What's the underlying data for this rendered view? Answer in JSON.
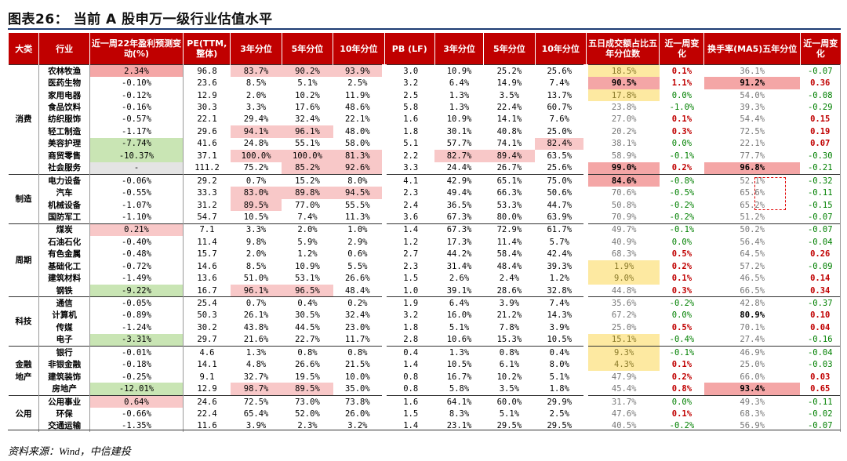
{
  "title": "图表26：  当前 A 股申万一级行业估值水平",
  "source": "资料来源：Wind，中信建投",
  "headers": [
    "大类",
    "行业",
    "近一周22年盈利预测变动(%)",
    "PE(TTM,整体)",
    "3年分位",
    "5年分位",
    "10年分位",
    "PB (LF)",
    "3年分位",
    "5年分位",
    "10年分位",
    "五日成交额占比五年分位数",
    "近一周变化",
    "换手率(MA5)五年分位",
    "近一周变化"
  ],
  "groups": [
    {
      "name": "消费",
      "rows": [
        {
          "industry": "农林牧渔",
          "eps": "2.34%",
          "pe": "96.8",
          "pe3": "83.7%",
          "pe5": "90.2%",
          "pe10": "93.9%",
          "pb": "3.0",
          "pb3": "10.9%",
          "pb5": "25.2%",
          "pb10": "25.6%",
          "vol": "18.5%",
          "volchg": "0.1%",
          "turn": "36.1%",
          "turnchg": "-0.07"
        },
        {
          "industry": "医药生物",
          "eps": "-0.10%",
          "pe": "23.6",
          "pe3": "8.5%",
          "pe5": "5.1%",
          "pe10": "2.5%",
          "pb": "3.2",
          "pb3": "6.4%",
          "pb5": "14.9%",
          "pb10": "7.4%",
          "vol": "90.5%",
          "volchg": "1.1%",
          "turn": "91.2%",
          "turnchg": "0.36"
        },
        {
          "industry": "家用电器",
          "eps": "-0.12%",
          "pe": "12.9",
          "pe3": "2.0%",
          "pe5": "10.2%",
          "pe10": "11.9%",
          "pb": "2.5",
          "pb3": "1.3%",
          "pb5": "3.5%",
          "pb10": "13.7%",
          "vol": "17.8%",
          "volchg": "0.0%",
          "turn": "54.0%",
          "turnchg": "-0.08"
        },
        {
          "industry": "食品饮料",
          "eps": "-0.16%",
          "pe": "30.3",
          "pe3": "3.3%",
          "pe5": "17.6%",
          "pe10": "48.6%",
          "pb": "5.8",
          "pb3": "1.3%",
          "pb5": "22.4%",
          "pb10": "60.7%",
          "vol": "23.8%",
          "volchg": "-1.0%",
          "turn": "39.3%",
          "turnchg": "-0.29"
        },
        {
          "industry": "纺织服饰",
          "eps": "-0.57%",
          "pe": "22.1",
          "pe3": "29.4%",
          "pe5": "32.4%",
          "pe10": "22.1%",
          "pb": "1.6",
          "pb3": "10.9%",
          "pb5": "14.1%",
          "pb10": "7.6%",
          "vol": "27.0%",
          "volchg": "0.1%",
          "turn": "54.4%",
          "turnchg": "0.15"
        },
        {
          "industry": "轻工制造",
          "eps": "-1.17%",
          "pe": "29.6",
          "pe3": "94.1%",
          "pe5": "96.1%",
          "pe10": "48.0%",
          "pb": "1.8",
          "pb3": "30.1%",
          "pb5": "40.8%",
          "pb10": "25.0%",
          "vol": "20.2%",
          "volchg": "0.3%",
          "turn": "72.5%",
          "turnchg": "0.19"
        },
        {
          "industry": "美容护理",
          "eps": "-7.74%",
          "pe": "41.6",
          "pe3": "24.8%",
          "pe5": "55.1%",
          "pe10": "58.0%",
          "pb": "5.1",
          "pb3": "57.7%",
          "pb5": "74.1%",
          "pb10": "82.4%",
          "vol": "38.1%",
          "volchg": "0.0%",
          "turn": "22.1%",
          "turnchg": "0.07"
        },
        {
          "industry": "商贸零售",
          "eps": "-10.37%",
          "pe": "37.1",
          "pe3": "100.0%",
          "pe5": "100.0%",
          "pe10": "81.3%",
          "pb": "2.2",
          "pb3": "82.7%",
          "pb5": "89.4%",
          "pb10": "63.5%",
          "vol": "58.9%",
          "volchg": "-0.1%",
          "turn": "77.7%",
          "turnchg": "-0.30"
        },
        {
          "industry": "社会服务",
          "eps": "-",
          "pe": "111.2",
          "pe3": "75.2%",
          "pe5": "85.2%",
          "pe10": "92.6%",
          "pb": "3.3",
          "pb3": "24.4%",
          "pb5": "26.7%",
          "pb10": "25.6%",
          "vol": "99.0%",
          "volchg": "0.2%",
          "turn": "96.8%",
          "turnchg": "-0.21"
        }
      ]
    },
    {
      "name": "制造",
      "rows": [
        {
          "industry": "电力设备",
          "eps": "-0.06%",
          "pe": "29.2",
          "pe3": "0.7%",
          "pe5": "15.2%",
          "pe10": "8.0%",
          "pb": "4.1",
          "pb3": "42.9%",
          "pb5": "65.1%",
          "pb10": "75.0%",
          "vol": "84.6%",
          "volchg": "-0.8%",
          "turn": "52.1%",
          "turnchg": "-0.32"
        },
        {
          "industry": "汽车",
          "eps": "-0.55%",
          "pe": "33.3",
          "pe3": "83.0%",
          "pe5": "89.8%",
          "pe10": "94.5%",
          "pb": "2.3",
          "pb3": "49.4%",
          "pb5": "66.3%",
          "pb10": "50.6%",
          "vol": "70.6%",
          "volchg": "-0.5%",
          "turn": "65.6%",
          "turnchg": "-0.11"
        },
        {
          "industry": "机械设备",
          "eps": "-1.07%",
          "pe": "31.2",
          "pe3": "89.5%",
          "pe5": "77.0%",
          "pe10": "55.5%",
          "pb": "2.4",
          "pb3": "36.5%",
          "pb5": "53.3%",
          "pb10": "44.7%",
          "vol": "50.8%",
          "volchg": "-0.2%",
          "turn": "65.2%",
          "turnchg": "-0.15"
        },
        {
          "industry": "国防军工",
          "eps": "-1.10%",
          "pe": "54.7",
          "pe3": "10.5%",
          "pe5": "7.4%",
          "pe10": "11.3%",
          "pb": "3.6",
          "pb3": "67.3%",
          "pb5": "80.0%",
          "pb10": "63.9%",
          "vol": "70.9%",
          "volchg": "-0.2%",
          "turn": "51.2%",
          "turnchg": "-0.07"
        }
      ]
    },
    {
      "name": "周期",
      "rows": [
        {
          "industry": "煤炭",
          "eps": "0.21%",
          "pe": "7.1",
          "pe3": "3.3%",
          "pe5": "2.0%",
          "pe10": "1.0%",
          "pb": "1.4",
          "pb3": "67.3%",
          "pb5": "72.9%",
          "pb10": "61.7%",
          "vol": "49.7%",
          "volchg": "-0.1%",
          "turn": "50.2%",
          "turnchg": "-0.07"
        },
        {
          "industry": "石油石化",
          "eps": "-0.40%",
          "pe": "11.4",
          "pe3": "9.8%",
          "pe5": "5.9%",
          "pe10": "2.9%",
          "pb": "1.2",
          "pb3": "17.3%",
          "pb5": "11.4%",
          "pb10": "5.7%",
          "vol": "40.9%",
          "volchg": "0.0%",
          "turn": "56.4%",
          "turnchg": "-0.04"
        },
        {
          "industry": "有色金属",
          "eps": "-0.48%",
          "pe": "15.7",
          "pe3": "2.0%",
          "pe5": "1.2%",
          "pe10": "0.6%",
          "pb": "2.7",
          "pb3": "44.2%",
          "pb5": "58.4%",
          "pb10": "42.4%",
          "vol": "68.3%",
          "volchg": "0.5%",
          "turn": "64.5%",
          "turnchg": "0.26"
        },
        {
          "industry": "基础化工",
          "eps": "-0.72%",
          "pe": "14.6",
          "pe3": "8.5%",
          "pe5": "10.9%",
          "pe10": "5.5%",
          "pb": "2.3",
          "pb3": "31.4%",
          "pb5": "48.4%",
          "pb10": "39.3%",
          "vol": "1.9%",
          "volchg": "0.2%",
          "turn": "57.2%",
          "turnchg": "-0.09"
        },
        {
          "industry": "建筑材料",
          "eps": "-1.49%",
          "pe": "13.6",
          "pe3": "51.0%",
          "pe5": "53.1%",
          "pe10": "26.6%",
          "pb": "1.5",
          "pb3": "2.6%",
          "pb5": "2.4%",
          "pb10": "1.2%",
          "vol": "9.0%",
          "volchg": "0.1%",
          "turn": "46.5%",
          "turnchg": "0.14"
        },
        {
          "industry": "钢铁",
          "eps": "-9.22%",
          "pe": "16.7",
          "pe3": "96.1%",
          "pe5": "96.5%",
          "pe10": "48.4%",
          "pb": "1.0",
          "pb3": "39.1%",
          "pb5": "28.6%",
          "pb10": "32.8%",
          "vol": "44.8%",
          "volchg": "0.3%",
          "turn": "66.5%",
          "turnchg": "0.34"
        }
      ]
    },
    {
      "name": "科技",
      "rows": [
        {
          "industry": "通信",
          "eps": "-0.05%",
          "pe": "25.4",
          "pe3": "0.7%",
          "pe5": "0.4%",
          "pe10": "0.2%",
          "pb": "1.9",
          "pb3": "6.4%",
          "pb5": "3.9%",
          "pb10": "7.4%",
          "vol": "35.6%",
          "volchg": "-0.2%",
          "turn": "42.8%",
          "turnchg": "-0.37"
        },
        {
          "industry": "计算机",
          "eps": "-0.89%",
          "pe": "50.3",
          "pe3": "26.1%",
          "pe5": "30.5%",
          "pe10": "32.4%",
          "pb": "3.2",
          "pb3": "16.0%",
          "pb5": "21.2%",
          "pb10": "14.3%",
          "vol": "67.2%",
          "volchg": "0.0%",
          "turn": "80.9%",
          "turnchg": "0.10"
        },
        {
          "industry": "传媒",
          "eps": "-1.24%",
          "pe": "30.2",
          "pe3": "43.8%",
          "pe5": "44.5%",
          "pe10": "23.0%",
          "pb": "1.8",
          "pb3": "5.1%",
          "pb5": "7.8%",
          "pb10": "3.9%",
          "vol": "25.0%",
          "volchg": "0.5%",
          "turn": "70.1%",
          "turnchg": "0.04"
        },
        {
          "industry": "电子",
          "eps": "-3.31%",
          "pe": "29.7",
          "pe3": "21.6%",
          "pe5": "22.7%",
          "pe10": "11.7%",
          "pb": "2.8",
          "pb3": "10.6%",
          "pb5": "15.3%",
          "pb10": "10.5%",
          "vol": "15.1%",
          "volchg": "-0.4%",
          "turn": "27.4%",
          "turnchg": "-0.16"
        }
      ]
    },
    {
      "name": "金融地产",
      "rows": [
        {
          "industry": "银行",
          "eps": "-0.01%",
          "pe": "4.6",
          "pe3": "1.3%",
          "pe5": "0.8%",
          "pe10": "0.8%",
          "pb": "0.4",
          "pb3": "1.3%",
          "pb5": "0.8%",
          "pb10": "0.4%",
          "vol": "9.3%",
          "volchg": "-0.1%",
          "turn": "46.9%",
          "turnchg": "-0.04"
        },
        {
          "industry": "非银金融",
          "eps": "-0.18%",
          "pe": "14.1",
          "pe3": "4.8%",
          "pe5": "26.6%",
          "pe10": "21.5%",
          "pb": "1.4",
          "pb3": "10.5%",
          "pb5": "6.1%",
          "pb10": "8.0%",
          "vol": "4.3%",
          "volchg": "0.1%",
          "turn": "25.0%",
          "turnchg": "-0.03"
        },
        {
          "industry": "建筑装饰",
          "eps": "-0.25%",
          "pe": "9.1",
          "pe3": "32.7%",
          "pe5": "19.5%",
          "pe10": "10.0%",
          "pb": "0.8",
          "pb3": "16.7%",
          "pb5": "10.2%",
          "pb10": "5.1%",
          "vol": "47.9%",
          "volchg": "0.2%",
          "turn": "66.0%",
          "turnchg": "0.03"
        },
        {
          "industry": "房地产",
          "eps": "-12.01%",
          "pe": "12.9",
          "pe3": "98.7%",
          "pe5": "89.5%",
          "pe10": "35.0%",
          "pb": "0.8",
          "pb3": "5.8%",
          "pb5": "3.5%",
          "pb10": "1.8%",
          "vol": "45.4%",
          "volchg": "0.8%",
          "turn": "93.4%",
          "turnchg": "0.65"
        }
      ]
    },
    {
      "name": "公用",
      "rows": [
        {
          "industry": "公用事业",
          "eps": "0.64%",
          "pe": "24.6",
          "pe3": "72.5%",
          "pe5": "73.0%",
          "pe10": "73.8%",
          "pb": "1.6",
          "pb3": "64.1%",
          "pb5": "60.0%",
          "pb10": "29.9%",
          "vol": "31.7%",
          "volchg": "0.0%",
          "turn": "49.3%",
          "turnchg": "-0.11"
        },
        {
          "industry": "环保",
          "eps": "-0.66%",
          "pe": "22.4",
          "pe3": "65.4%",
          "pe5": "52.0%",
          "pe10": "26.0%",
          "pb": "1.5",
          "pb3": "8.3%",
          "pb5": "5.1%",
          "pb10": "2.5%",
          "vol": "47.6%",
          "volchg": "0.1%",
          "turn": "68.3%",
          "turnchg": "-0.02"
        },
        {
          "industry": "交通运输",
          "eps": "-1.35%",
          "pe": "11.6",
          "pe3": "3.9%",
          "pe5": "2.3%",
          "pe10": "3.2%",
          "pb": "1.4",
          "pb3": "23.1%",
          "pb5": "29.5%",
          "pb10": "29.5%",
          "vol": "40.5%",
          "volchg": "-0.2%",
          "turn": "56.9%",
          "turnchg": "-0.07"
        }
      ]
    }
  ],
  "highlight_colors": {
    "pink": "#f8c8c8",
    "red": "#f4a6a6",
    "green": "#c9e5b4",
    "yellow": "#fde9a1",
    "grey": "#e4e4e4",
    "header": "#c00000"
  }
}
